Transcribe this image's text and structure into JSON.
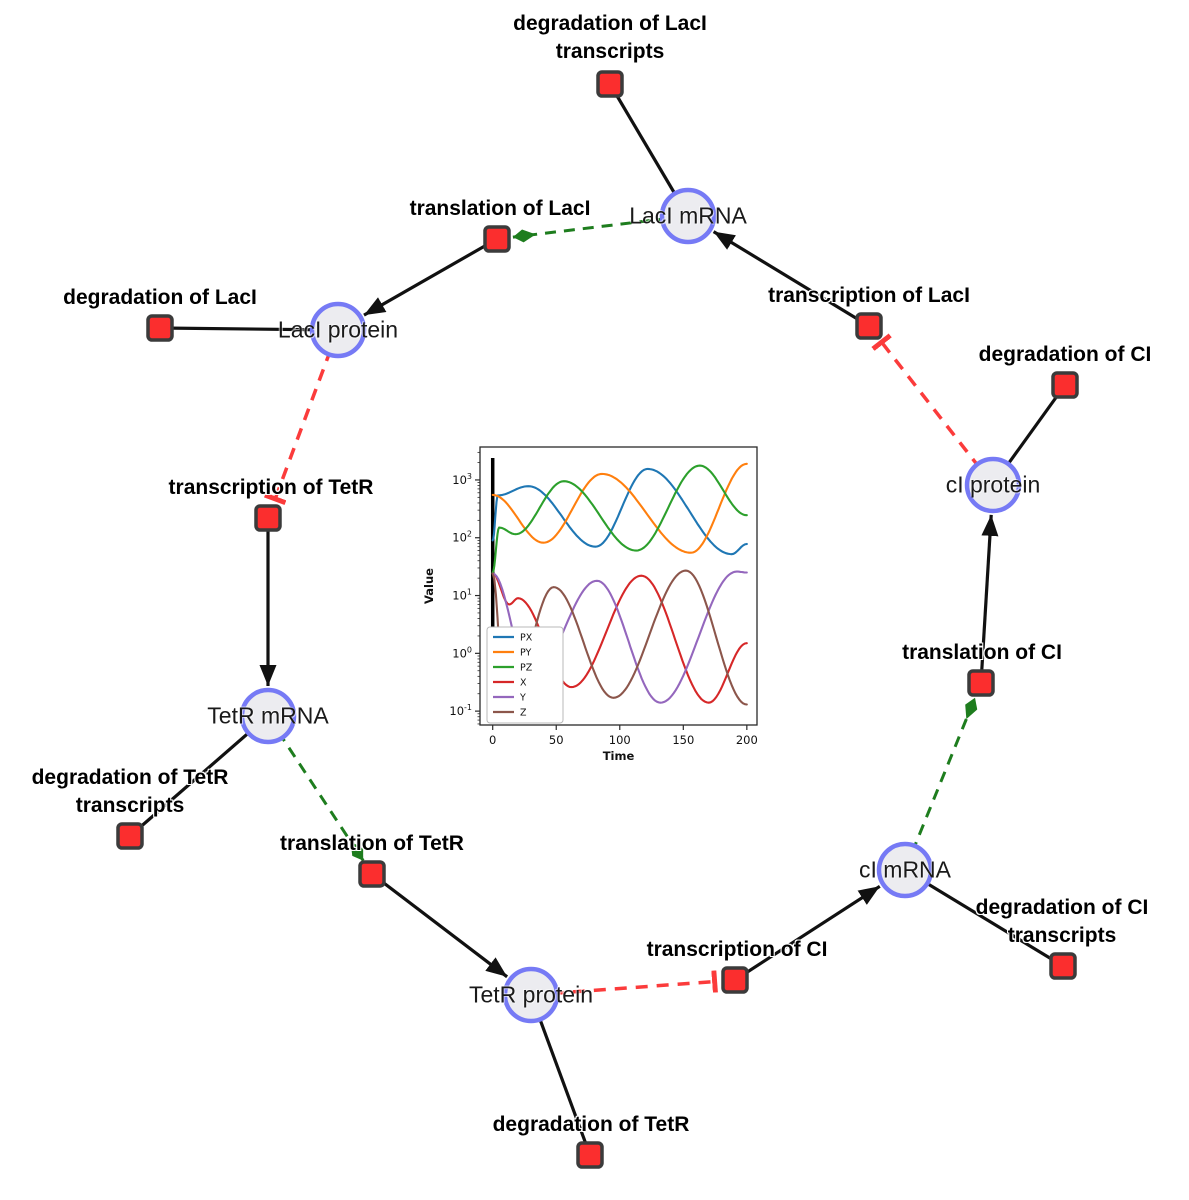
{
  "diagram": {
    "species": [
      {
        "id": "laci-mrna",
        "label": "LacI mRNA"
      },
      {
        "id": "laci-protein",
        "label": "LacI protein"
      },
      {
        "id": "tetr-mrna",
        "label": "TetR mRNA"
      },
      {
        "id": "tetr-protein",
        "label": "TetR protein"
      },
      {
        "id": "ci-mrna",
        "label": "cI mRNA"
      },
      {
        "id": "ci-protein",
        "label": "cI protein"
      }
    ],
    "reactions": [
      {
        "id": "degradation-laci-transcripts",
        "lines": [
          "degradation of LacI",
          "transcripts"
        ]
      },
      {
        "id": "translation-laci",
        "lines": [
          "translation of LacI"
        ]
      },
      {
        "id": "transcription-laci",
        "lines": [
          "transcription of LacI"
        ]
      },
      {
        "id": "degradation-laci",
        "lines": [
          "degradation of LacI"
        ]
      },
      {
        "id": "transcription-tetr",
        "lines": [
          "transcription of TetR"
        ]
      },
      {
        "id": "degradation-ci",
        "lines": [
          "degradation of CI"
        ]
      },
      {
        "id": "translation-ci",
        "lines": [
          "translation of CI"
        ]
      },
      {
        "id": "degradation-tetr-transcripts",
        "lines": [
          "degradation of TetR",
          "transcripts"
        ]
      },
      {
        "id": "translation-tetr",
        "lines": [
          "translation of TetR"
        ]
      },
      {
        "id": "transcription-ci",
        "lines": [
          "transcription of CI"
        ]
      },
      {
        "id": "degradation-ci-transcripts",
        "lines": [
          "degradation of CI",
          "transcripts"
        ]
      },
      {
        "id": "degradation-tetr",
        "lines": [
          "degradation of TetR"
        ]
      }
    ],
    "colors": {
      "species_fill": "#ececf0",
      "species_border": "#767af5",
      "reaction_fill": "#fb2e2e",
      "reaction_border": "#3b3b3b",
      "production_edge": "#111111",
      "modifier_edge": "#1e7d1e",
      "inhibition_edge": "#fb3b3b"
    }
  },
  "chart_data": {
    "type": "line",
    "title": "",
    "xlabel": "Time",
    "ylabel": "Value",
    "yscale": "log",
    "grid": false,
    "legend_position": "lower left",
    "xlim": [
      -10,
      208
    ],
    "ylim_log10": [
      -1.24,
      3.57
    ],
    "x_ticks": [
      0,
      50,
      100,
      150,
      200
    ],
    "y_ticks_log10": [
      -1,
      0,
      1,
      2,
      3
    ],
    "vline_at_x": 0,
    "series": [
      {
        "name": "PX",
        "color": "#1f77b4",
        "points": [
          [
            0,
            90
          ],
          [
            4,
            540
          ],
          [
            28,
            780
          ],
          [
            81,
            70
          ],
          [
            122,
            1550
          ],
          [
            188,
            52
          ],
          [
            200,
            78
          ]
        ]
      },
      {
        "name": "PY",
        "color": "#ff7f0e",
        "points": [
          [
            0,
            550
          ],
          [
            40,
            82
          ],
          [
            86,
            1270
          ],
          [
            156,
            55
          ],
          [
            200,
            1900
          ]
        ]
      },
      {
        "name": "PZ",
        "color": "#2ca02c",
        "points": [
          [
            0,
            25
          ],
          [
            5,
            150
          ],
          [
            18,
            115
          ],
          [
            56,
            950
          ],
          [
            113,
            60
          ],
          [
            163,
            1770
          ],
          [
            200,
            245
          ]
        ]
      },
      {
        "name": "X",
        "color": "#d62728",
        "points": [
          [
            0,
            24
          ],
          [
            13,
            7
          ],
          [
            20,
            9
          ],
          [
            62,
            0.26
          ],
          [
            117,
            22
          ],
          [
            170,
            0.14
          ],
          [
            200,
            1.5
          ]
        ]
      },
      {
        "name": "Y",
        "color": "#9467bd",
        "points": [
          [
            0,
            24
          ],
          [
            30,
            0.35
          ],
          [
            82,
            18
          ],
          [
            132,
            0.14
          ],
          [
            192,
            26
          ],
          [
            200,
            25
          ]
        ]
      },
      {
        "name": "Z",
        "color": "#8c564b",
        "points": [
          [
            0,
            24
          ],
          [
            10,
            0.085
          ],
          [
            48,
            14
          ],
          [
            95,
            0.17
          ],
          [
            152,
            27
          ],
          [
            200,
            0.13
          ]
        ]
      }
    ]
  }
}
